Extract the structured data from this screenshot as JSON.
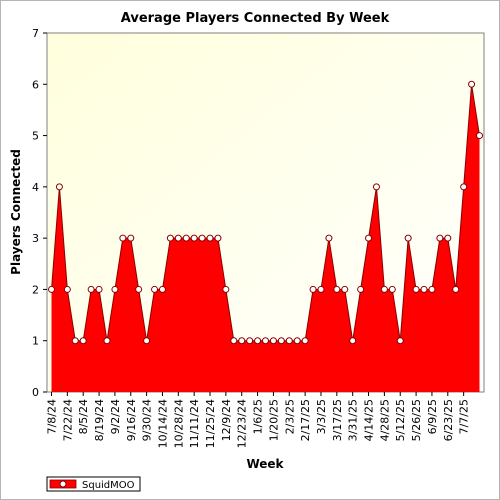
{
  "chart_data": {
    "type": "area",
    "title": "Average Players Connected By Week",
    "xlabel": "Week",
    "ylabel": "Players Connected",
    "ylim": [
      0,
      7
    ],
    "yticks": [
      "0",
      "1",
      "2",
      "3",
      "4",
      "5",
      "6",
      "7"
    ],
    "grid": false,
    "legend_position": "bottom-left",
    "x_tick_labels": [
      "7/8/24",
      "7/22/24",
      "8/5/24",
      "8/19/24",
      "9/2/24",
      "9/16/24",
      "9/30/24",
      "10/14/24",
      "10/28/24",
      "11/11/24",
      "11/25/24",
      "12/9/24",
      "12/23/24",
      "1/6/25",
      "1/20/25",
      "2/3/25",
      "2/17/25",
      "3/3/25",
      "3/17/25",
      "3/31/25",
      "4/14/25",
      "4/28/25",
      "5/12/25",
      "5/26/25",
      "6/9/25",
      "6/23/25",
      "7/7/25"
    ],
    "series": [
      {
        "name": "SquidMOO",
        "color": "#ff0000",
        "values": [
          2,
          4,
          2,
          1,
          1,
          2,
          2,
          1,
          2,
          3,
          3,
          2,
          1,
          2,
          2,
          3,
          3,
          3,
          3,
          3,
          3,
          3,
          2,
          1,
          1,
          1,
          1,
          1,
          1,
          1,
          1,
          1,
          1,
          2,
          2,
          3,
          2,
          2,
          1,
          2,
          3,
          4,
          2,
          2,
          1,
          3,
          2,
          2,
          2,
          3,
          3,
          2,
          4,
          6,
          5
        ]
      }
    ]
  },
  "colors": {
    "plot_top": "#ffffe6",
    "plot_bottom": "#fdfdf2",
    "area_fill": "#ff0000",
    "outline": "#8a0000",
    "marker_fill": "#ffffff"
  }
}
